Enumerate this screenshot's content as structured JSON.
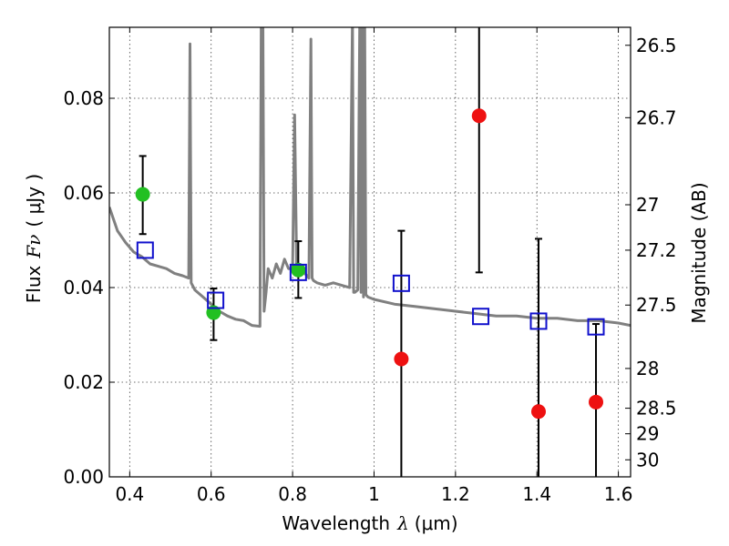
{
  "chart_data": {
    "type": "scatter",
    "xlabel": {
      "prefix": "Wavelength",
      "symbol": "λ",
      "unit": "(μm)"
    },
    "ylabel": {
      "prefix": "Flux",
      "symbol": "Fν",
      "unit": "( μJy )"
    },
    "ylabel_right": "Magnitude (AB)",
    "xlim": [
      0.35,
      1.63
    ],
    "ylim": [
      0.0,
      0.095
    ],
    "xticks": [
      0.4,
      0.6,
      0.8,
      1.0,
      1.2,
      1.4,
      1.6
    ],
    "xtick_labels": [
      "0.4",
      "0.6",
      "0.8",
      "1",
      "1.2",
      "1.4",
      "1.6"
    ],
    "yticks": [
      0.0,
      0.02,
      0.04,
      0.06,
      0.08
    ],
    "ytick_labels": [
      "0.00",
      "0.02",
      "0.04",
      "0.06",
      "0.08"
    ],
    "right_ticks": [
      {
        "mag": "26.5",
        "flux": 0.0912
      },
      {
        "mag": "26.7",
        "flux": 0.0759
      },
      {
        "mag": "27",
        "flux": 0.0575
      },
      {
        "mag": "27.2",
        "flux": 0.0479
      },
      {
        "mag": "27.5",
        "flux": 0.0363
      },
      {
        "mag": "28",
        "flux": 0.0229
      },
      {
        "mag": "28.5",
        "flux": 0.0145
      },
      {
        "mag": "29",
        "flux": 0.0091
      },
      {
        "mag": "30",
        "flux": 0.0036
      }
    ],
    "grid": true,
    "colors": {
      "sed": "#808080",
      "green": "#22c022",
      "red": "#ee1111",
      "square": "#1010cc",
      "errorbar": "#000000"
    },
    "sed_spectrum": {
      "x": [
        0.35,
        0.37,
        0.39,
        0.41,
        0.43,
        0.45,
        0.47,
        0.49,
        0.51,
        0.53,
        0.545,
        0.548,
        0.551,
        0.56,
        0.58,
        0.6,
        0.62,
        0.64,
        0.66,
        0.68,
        0.7,
        0.72,
        0.723,
        0.727,
        0.73,
        0.735,
        0.74,
        0.75,
        0.76,
        0.77,
        0.78,
        0.79,
        0.8,
        0.805,
        0.81,
        0.815,
        0.82,
        0.83,
        0.84,
        0.845,
        0.848,
        0.851,
        0.86,
        0.88,
        0.9,
        0.92,
        0.94,
        0.947,
        0.95,
        0.953,
        0.96,
        0.965,
        0.968,
        0.971,
        0.974,
        0.977,
        0.98,
        0.985,
        1.0,
        1.05,
        1.1,
        1.15,
        1.2,
        1.25,
        1.3,
        1.35,
        1.4,
        1.45,
        1.5,
        1.55,
        1.6,
        1.63
      ],
      "y": [
        0.057,
        0.052,
        0.0495,
        0.0475,
        0.0465,
        0.045,
        0.0445,
        0.044,
        0.043,
        0.0425,
        0.042,
        0.0915,
        0.041,
        0.0395,
        0.038,
        0.0365,
        0.035,
        0.034,
        0.0333,
        0.033,
        0.032,
        0.0318,
        0.097,
        0.097,
        0.035,
        0.039,
        0.044,
        0.042,
        0.045,
        0.043,
        0.046,
        0.044,
        0.044,
        0.0765,
        0.044,
        0.044,
        0.0435,
        0.043,
        0.042,
        0.0925,
        0.042,
        0.0415,
        0.041,
        0.0405,
        0.041,
        0.0405,
        0.04,
        0.097,
        0.039,
        0.039,
        0.0395,
        0.097,
        0.039,
        0.097,
        0.038,
        0.097,
        0.0385,
        0.038,
        0.0375,
        0.0365,
        0.036,
        0.0355,
        0.035,
        0.0345,
        0.034,
        0.034,
        0.0335,
        0.0335,
        0.033,
        0.033,
        0.0325,
        0.032
      ]
    },
    "series": [
      {
        "marker": "circle",
        "color": "green",
        "points": [
          {
            "x": 0.432,
            "y": 0.0597,
            "yerr_low": 0.0513,
            "yerr_high": 0.0678
          },
          {
            "x": 0.606,
            "y": 0.0347,
            "yerr_low": 0.0289,
            "yerr_high": 0.0398
          },
          {
            "x": 0.814,
            "y": 0.0437,
            "yerr_low": 0.0378,
            "yerr_high": 0.0498
          }
        ]
      },
      {
        "marker": "circle",
        "color": "red",
        "points": [
          {
            "x": 1.067,
            "y": 0.0249,
            "yerr_low": 0.0,
            "yerr_high": 0.052
          },
          {
            "x": 1.258,
            "y": 0.0763,
            "yerr_low": 0.0432,
            "yerr_high": 0.097
          },
          {
            "x": 1.404,
            "y": 0.0138,
            "yerr_low": 0.0,
            "yerr_high": 0.0503
          },
          {
            "x": 1.545,
            "y": 0.0158,
            "yerr_low": 0.0,
            "yerr_high": 0.0323
          }
        ]
      },
      {
        "marker": "square",
        "color": "square",
        "points": [
          {
            "x": 0.438,
            "y": 0.0479
          },
          {
            "x": 0.611,
            "y": 0.0373
          },
          {
            "x": 0.814,
            "y": 0.0432
          },
          {
            "x": 1.067,
            "y": 0.0409
          },
          {
            "x": 1.262,
            "y": 0.0339
          },
          {
            "x": 1.404,
            "y": 0.0329
          },
          {
            "x": 1.545,
            "y": 0.0317
          }
        ]
      }
    ]
  }
}
